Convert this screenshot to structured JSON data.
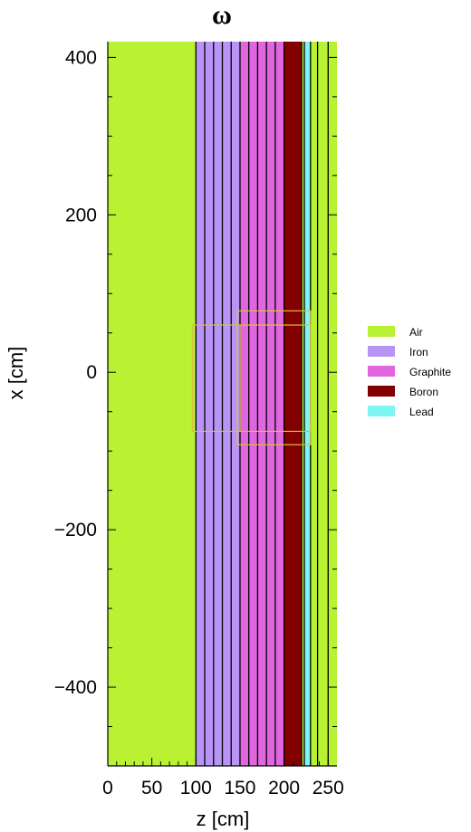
{
  "chart_data": {
    "type": "geometry",
    "title": "ω",
    "xlabel": "z [cm]",
    "ylabel": "x [cm]",
    "xlim": [
      0,
      260
    ],
    "ylim": [
      -500,
      420
    ],
    "xticks": [
      0,
      50,
      100,
      150,
      200,
      250
    ],
    "yticks": [
      400,
      200,
      0,
      -200,
      -400
    ],
    "background_material": "Air",
    "regions": [
      {
        "material": "Air",
        "z": [
          0,
          100
        ]
      },
      {
        "material": "Iron",
        "z": [
          100,
          150
        ]
      },
      {
        "material": "Graphite",
        "z": [
          150,
          200
        ]
      },
      {
        "material": "Boron",
        "z": [
          200,
          220
        ]
      },
      {
        "material": "Air",
        "z": [
          220,
          223
        ]
      },
      {
        "material": "Lead",
        "z": [
          223,
          230
        ]
      },
      {
        "material": "Air",
        "z": [
          230,
          250
        ]
      }
    ],
    "layer_boundaries": [
      100,
      110,
      120,
      130,
      140,
      150,
      160,
      170,
      180,
      190,
      200,
      220,
      223,
      230,
      238,
      250
    ],
    "detector_boxes": [
      {
        "z": [
          96,
          150
        ],
        "x": [
          -75,
          60
        ]
      },
      {
        "z": [
          147,
          230
        ],
        "x": [
          -92,
          78
        ]
      },
      {
        "z": [
          147,
          230
        ],
        "x": [
          -75,
          60
        ]
      }
    ],
    "legend": [
      {
        "label": "Air",
        "color": "#b8f233"
      },
      {
        "label": "Iron",
        "color": "#b994f7"
      },
      {
        "label": "Graphite",
        "color": "#e066e0"
      },
      {
        "label": "Boron",
        "color": "#820000"
      },
      {
        "label": "Lead",
        "color": "#7ef5f5"
      }
    ],
    "legend_placement": "right"
  }
}
